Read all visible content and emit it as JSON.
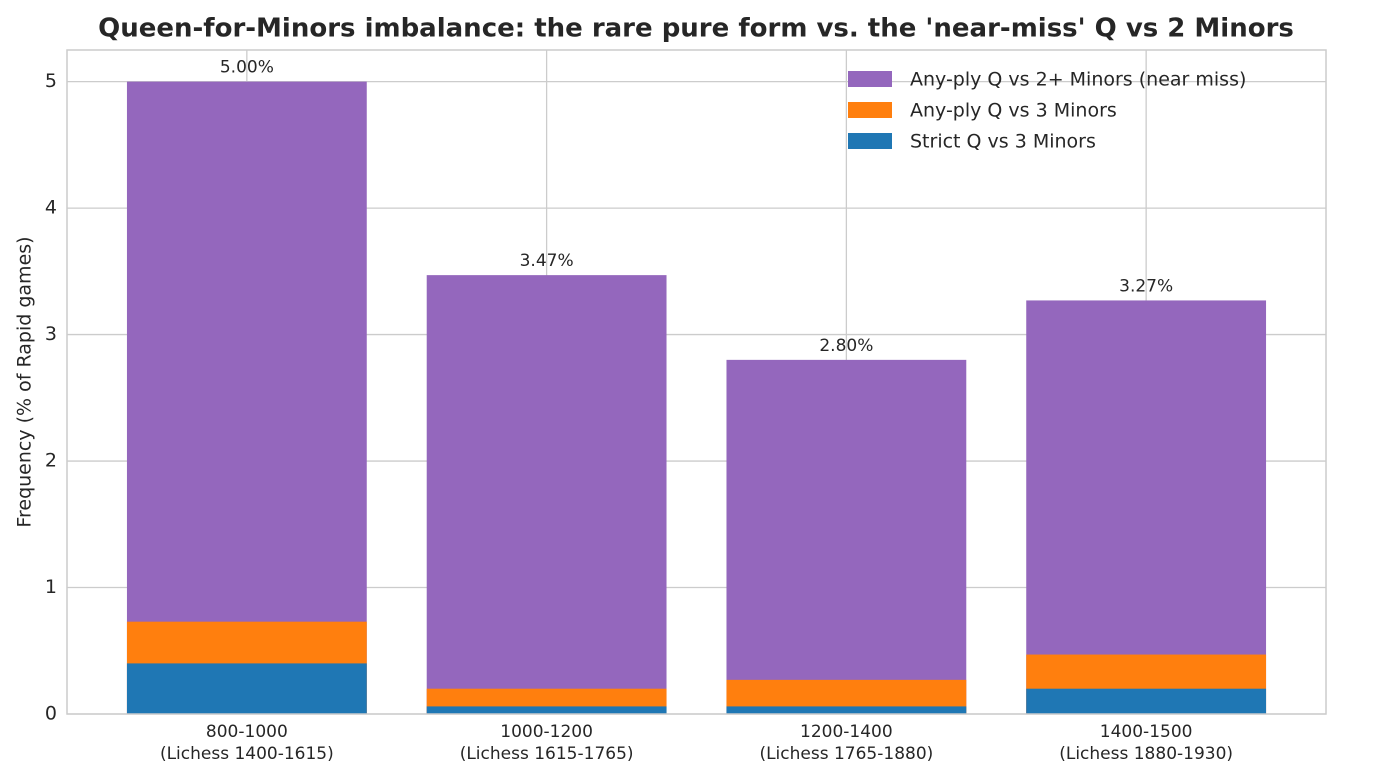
{
  "chart_data": {
    "type": "bar",
    "layout": "overlap",
    "title": "Queen-for-Minors imbalance: the rare pure form vs. the 'near-miss' Q vs 2 Minors",
    "y_label": "Frequency (% of Rapid games)",
    "categories": [
      [
        "800-1000",
        "(Lichess 1400-1615)"
      ],
      [
        "1000-1200",
        "(Lichess 1615-1765)"
      ],
      [
        "1200-1400",
        "(Lichess 1765-1880)"
      ],
      [
        "1400-1500",
        "(Lichess 1880-1930)"
      ]
    ],
    "series": [
      {
        "name": "Any-ply Q vs 2+ Minors (near miss)",
        "color": "#9467bd",
        "values": [
          5.0,
          3.47,
          2.8,
          3.27
        ],
        "value_labels": [
          "5.00%",
          "3.47%",
          "2.80%",
          "3.27%"
        ]
      },
      {
        "name": "Any-ply Q vs 3 Minors",
        "color": "#ff7f0e",
        "values": [
          0.73,
          0.2,
          0.27,
          0.47
        ]
      },
      {
        "name": "Strict Q vs 3 Minors",
        "color": "#1f77b4",
        "values": [
          0.4,
          0.06,
          0.06,
          0.2
        ]
      }
    ],
    "ylim": [
      0,
      5.25
    ],
    "yticks": [
      0,
      1,
      2,
      3,
      4,
      5
    ],
    "grid": true,
    "legend": "upper right"
  }
}
